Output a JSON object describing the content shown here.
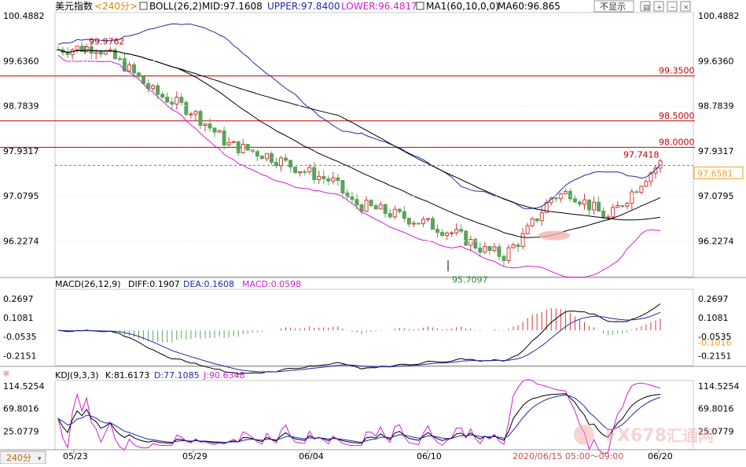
{
  "header": {
    "symbol": "美元指数",
    "period": "<240分>",
    "boll_label": "BOLL(26,2)",
    "mid_label": "MID:97.1608",
    "upper_label": "UPPER:97.8400",
    "lower_label": "LOWER:96.4817",
    "ma_label": "MA1(60,10,0,0)",
    "ma60_label": "MA60:96.865",
    "hide_button": "不显示"
  },
  "macd_header": {
    "title": "MACD(26,12,9)",
    "diff": "DIFF:0.1907",
    "dea": "DEA:0.1608",
    "macd": "MACD:0.0598"
  },
  "kdj_header": {
    "title": "KDJ(9,3,3)",
    "k": "K:81.6173",
    "d": "D:77.1085",
    "j": "J:90.6348"
  },
  "footer": {
    "period_badge": "240分",
    "crosshair_time": "2020/06/15 05:00～09:00"
  },
  "watermark": {
    "text": "FX678",
    "sub": "汇通网"
  },
  "colors": {
    "up": "#d43a3a",
    "down": "#5aa35a",
    "mid": "#000000",
    "upper": "#1f2aa8",
    "lower": "#d21ed2",
    "ma60": "#000000",
    "hline": "#c00000",
    "diff": "#000000",
    "dea": "#1f2aa8",
    "k": "#000000",
    "d": "#1f2aa8",
    "j": "#d21ed2",
    "current": "#f29e1e",
    "current_bg": "#f29e1e"
  },
  "chart_data": [
    {
      "type": "candlestick",
      "panel": "price",
      "y_ticks": [
        "100.4882",
        "99.6360",
        "98.7839",
        "97.9317",
        "97.0795",
        "96.2274"
      ],
      "ylim": [
        95.55,
        100.55
      ],
      "x_labels": [
        "05/23",
        "05/29",
        "06/04",
        "06/10",
        "06/20"
      ],
      "hlines": [
        {
          "value": 99.35,
          "label": "99.3500"
        },
        {
          "value": 98.5,
          "label": "98.5000"
        },
        {
          "value": 98.0,
          "label": "98.0000"
        }
      ],
      "annotations": [
        {
          "value": 99.9762,
          "label": "99.9762"
        },
        {
          "value": 97.7418,
          "label": "97.7418"
        },
        {
          "value": 95.7097,
          "label": "95.7097"
        }
      ],
      "current_price": {
        "value": 97.6581,
        "label": "97.6581"
      },
      "series_names": [
        "MID",
        "UPPER",
        "LOWER",
        "MA60"
      ]
    },
    {
      "type": "macd",
      "panel": "macd",
      "y_ticks": [
        "0.2697",
        "0.1081",
        "-0.0535",
        "-0.2151"
      ],
      "ylim": [
        -0.3,
        0.35
      ],
      "current_label": "-0.1016"
    },
    {
      "type": "kdj",
      "panel": "kdj",
      "y_ticks": [
        "114.5254",
        "69.8016",
        "25.0779"
      ],
      "ylim": [
        -10,
        125
      ]
    }
  ]
}
